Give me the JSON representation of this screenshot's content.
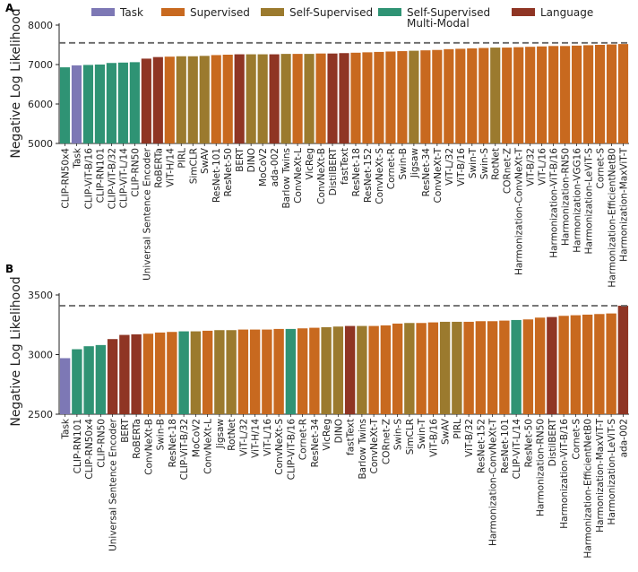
{
  "colors": {
    "Task": "#7d78b5",
    "Supervised": "#c8691f",
    "Self-Supervised": "#9b7a2e",
    "Self-Supervised Multi-Modal": "#2f9374",
    "Language": "#8f3524"
  },
  "legend": {
    "items": [
      {
        "key": "Task",
        "lines": [
          "Task"
        ]
      },
      {
        "key": "Supervised",
        "lines": [
          "Supervised"
        ]
      },
      {
        "key": "Self-Supervised",
        "lines": [
          "Self-Supervised"
        ]
      },
      {
        "key": "Self-Supervised Multi-Modal",
        "lines": [
          "Self-Supervised",
          "Multi-Modal"
        ]
      },
      {
        "key": "Language",
        "lines": [
          "Language"
        ]
      }
    ]
  },
  "chart_data": [
    {
      "panel": "A",
      "type": "bar",
      "ylabel": "Negative Log Likelihood",
      "ylim": [
        5000,
        8000
      ],
      "yticks": [
        5000,
        6000,
        7000,
        8000
      ],
      "reference_line": 7550,
      "categories": [
        "CLIP-RN50x4",
        "Task",
        "CLIP-ViT-B/16",
        "CLIP-RN101",
        "CLIP-ViT-B/32",
        "CLIP-ViT-L/14",
        "CLIP-RN50",
        "Universal Sentence Encoder",
        "RoBERTa",
        "ViT-H/14",
        "PIRL",
        "SimCLR",
        "SwAV",
        "ResNet-101",
        "ResNet-50",
        "BERT",
        "DINO",
        "MoCoV2",
        "ada-002",
        "Barlow Twins",
        "ConvNeXt-L",
        "VicReg",
        "ConvNeXt-B",
        "DistilBERT",
        "fastText",
        "ResNet-18",
        "ResNet-152",
        "ConvNeXt-S",
        "Cornet-R",
        "Swin-B",
        "Jigsaw",
        "ResNet-34",
        "ConvNeXt-T",
        "ViT-L/32",
        "ViT-B/16",
        "Swin-T",
        "Swin-S",
        "RotNet",
        "CORnet-Z",
        "Harmonization-ConvNeXt-T",
        "ViT-B/32",
        "ViT-L/16",
        "Harmonization-ViT-B/16",
        "Harmonization-RN50",
        "Harmonization-VGG16",
        "Harmonization-LeViT-S",
        "Cornet-S",
        "Harmonization-EfficientNetB0",
        "Harmonization-MaxViT-T"
      ],
      "values": [
        6930,
        6980,
        6990,
        7000,
        7040,
        7050,
        7060,
        7150,
        7190,
        7200,
        7210,
        7210,
        7220,
        7240,
        7250,
        7260,
        7260,
        7260,
        7260,
        7270,
        7270,
        7270,
        7280,
        7280,
        7290,
        7300,
        7310,
        7320,
        7330,
        7340,
        7350,
        7360,
        7370,
        7390,
        7400,
        7410,
        7420,
        7430,
        7430,
        7440,
        7450,
        7460,
        7470,
        7470,
        7480,
        7490,
        7500,
        7510,
        7520
      ],
      "groups": [
        "Self-Supervised Multi-Modal",
        "Task",
        "Self-Supervised Multi-Modal",
        "Self-Supervised Multi-Modal",
        "Self-Supervised Multi-Modal",
        "Self-Supervised Multi-Modal",
        "Self-Supervised Multi-Modal",
        "Language",
        "Language",
        "Supervised",
        "Self-Supervised",
        "Self-Supervised",
        "Self-Supervised",
        "Supervised",
        "Supervised",
        "Language",
        "Self-Supervised",
        "Self-Supervised",
        "Language",
        "Self-Supervised",
        "Supervised",
        "Self-Supervised",
        "Supervised",
        "Language",
        "Language",
        "Supervised",
        "Supervised",
        "Supervised",
        "Supervised",
        "Supervised",
        "Self-Supervised",
        "Supervised",
        "Supervised",
        "Supervised",
        "Supervised",
        "Supervised",
        "Supervised",
        "Self-Supervised",
        "Supervised",
        "Supervised",
        "Supervised",
        "Supervised",
        "Supervised",
        "Supervised",
        "Supervised",
        "Supervised",
        "Supervised",
        "Supervised",
        "Supervised"
      ]
    },
    {
      "panel": "B",
      "type": "bar",
      "ylabel": "Negative Log Likelihood",
      "ylim": [
        2500,
        3500
      ],
      "yticks": [
        2500,
        3000,
        3500
      ],
      "reference_line": 3410,
      "categories": [
        "Task",
        "CLIP-RN101",
        "CLIP-RN50x4",
        "CLIP-RN50",
        "Universal Sentence Encoder",
        "BERT",
        "RoBERTa",
        "ConvNeXt-B",
        "Swin-B",
        "ResNet-18",
        "CLIP-ViT-B/32",
        "MoCoV2",
        "ConvNeXt-L",
        "Jigsaw",
        "RotNet",
        "ViT-L/32",
        "ViT-H/14",
        "ViT-L/16",
        "ConvNeXt-S",
        "CLIP-ViT-B/16",
        "Cornet-R",
        "ResNet-34",
        "VicReg",
        "DINO",
        "fastText",
        "Barlow Twins",
        "ConvNeXt-T",
        "CORnet-Z",
        "Swin-S",
        "SimCLR",
        "Swin-T",
        "ViT-B/16",
        "SwAV",
        "PIRL",
        "ViT-B/32",
        "ResNet-152",
        "Harmonization-ConvNeXt-T",
        "ResNet-101",
        "CLIP-ViT-L/14",
        "ResNet-50",
        "Harmonization-RN50",
        "DistilBERT",
        "Harmonization-ViT-B/16",
        "Cornet-S",
        "Harmonization-EfficientNetB0",
        "Harmonization-MaxViT-T",
        "Harmonization-LeViT-S",
        "ada-002"
      ],
      "values": [
        2970,
        3045,
        3070,
        3080,
        3130,
        3165,
        3170,
        3175,
        3185,
        3190,
        3195,
        3195,
        3200,
        3205,
        3205,
        3210,
        3210,
        3210,
        3215,
        3215,
        3220,
        3225,
        3230,
        3235,
        3240,
        3240,
        3240,
        3245,
        3260,
        3265,
        3265,
        3270,
        3275,
        3275,
        3275,
        3280,
        3280,
        3285,
        3290,
        3295,
        3310,
        3315,
        3325,
        3330,
        3335,
        3340,
        3345,
        3410
      ],
      "groups": [
        "Task",
        "Self-Supervised Multi-Modal",
        "Self-Supervised Multi-Modal",
        "Self-Supervised Multi-Modal",
        "Language",
        "Language",
        "Language",
        "Supervised",
        "Supervised",
        "Supervised",
        "Self-Supervised Multi-Modal",
        "Self-Supervised",
        "Supervised",
        "Self-Supervised",
        "Self-Supervised",
        "Supervised",
        "Supervised",
        "Supervised",
        "Supervised",
        "Self-Supervised Multi-Modal",
        "Supervised",
        "Supervised",
        "Self-Supervised",
        "Self-Supervised",
        "Language",
        "Self-Supervised",
        "Supervised",
        "Supervised",
        "Supervised",
        "Self-Supervised",
        "Supervised",
        "Supervised",
        "Self-Supervised",
        "Self-Supervised",
        "Supervised",
        "Supervised",
        "Supervised",
        "Supervised",
        "Self-Supervised Multi-Modal",
        "Supervised",
        "Supervised",
        "Language",
        "Supervised",
        "Supervised",
        "Supervised",
        "Supervised",
        "Supervised",
        "Language"
      ]
    }
  ]
}
